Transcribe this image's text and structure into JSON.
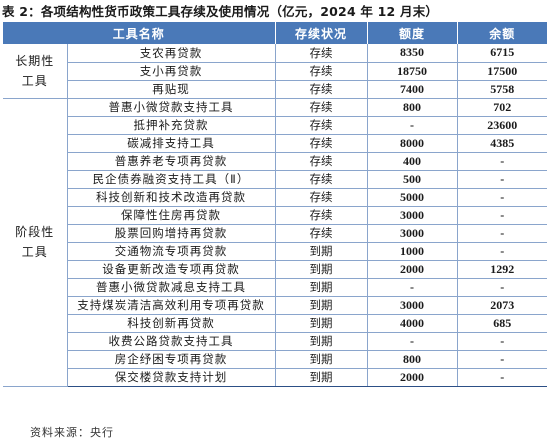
{
  "title": "表 2：各项结构性货币政策工具存续及使用情况（亿元，2024 年 12 月末）",
  "columns": [
    "工具名称",
    "存续状况",
    "额度",
    "余额"
  ],
  "groups": [
    {
      "label": "长期性\n工具",
      "rows": [
        {
          "name": "支农再贷款",
          "status": "存续",
          "quota": "8350",
          "balance": "6715"
        },
        {
          "name": "支小再贷款",
          "status": "存续",
          "quota": "18750",
          "balance": "17500"
        },
        {
          "name": "再贴现",
          "status": "存续",
          "quota": "7400",
          "balance": "5758"
        }
      ]
    },
    {
      "label": "阶段性\n工具",
      "rows": [
        {
          "name": "普惠小微贷款支持工具",
          "status": "存续",
          "quota": "800",
          "balance": "702"
        },
        {
          "name": "抵押补充贷款",
          "status": "存续",
          "quota": "-",
          "balance": "23600"
        },
        {
          "name": "碳减排支持工具",
          "status": "存续",
          "quota": "8000",
          "balance": "4385"
        },
        {
          "name": "普惠养老专项再贷款",
          "status": "存续",
          "quota": "400",
          "balance": "-"
        },
        {
          "name": "民企债券融资支持工具（Ⅱ）",
          "status": "存续",
          "quota": "500",
          "balance": "-"
        },
        {
          "name": "科技创新和技术改造再贷款",
          "status": "存续",
          "quota": "5000",
          "balance": "-"
        },
        {
          "name": "保障性住房再贷款",
          "status": "存续",
          "quota": "3000",
          "balance": "-"
        },
        {
          "name": "股票回购增持再贷款",
          "status": "存续",
          "quota": "3000",
          "balance": "-"
        },
        {
          "name": "交通物流专项再贷款",
          "status": "到期",
          "quota": "1000",
          "balance": "-"
        },
        {
          "name": "设备更新改造专项再贷款",
          "status": "到期",
          "quota": "2000",
          "balance": "1292"
        },
        {
          "name": "普惠小微贷款减息支持工具",
          "status": "到期",
          "quota": "-",
          "balance": "-"
        },
        {
          "name": "支持煤炭清洁高效利用专项再贷款",
          "status": "到期",
          "quota": "3000",
          "balance": "2073"
        },
        {
          "name": "科技创新再贷款",
          "status": "到期",
          "quota": "4000",
          "balance": "685"
        },
        {
          "name": "收费公路贷款支持工具",
          "status": "到期",
          "quota": "-",
          "balance": "-"
        },
        {
          "name": "房企纾困专项再贷款",
          "status": "到期",
          "quota": "800",
          "balance": "-"
        },
        {
          "name": "保交楼贷款支持计划",
          "status": "到期",
          "quota": "2000",
          "balance": "-"
        }
      ]
    }
  ],
  "source": "资料来源：央行"
}
